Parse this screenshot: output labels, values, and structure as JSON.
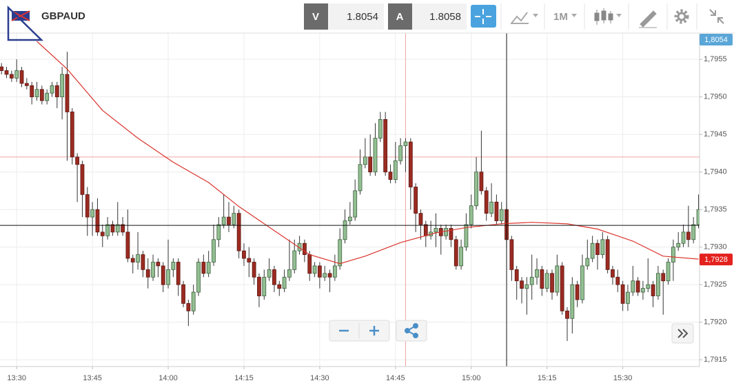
{
  "header": {
    "symbol": "GBPAUD",
    "bid_label": "V",
    "bid": 1.8054,
    "ask_label": "A",
    "ask": 1.8058,
    "timeframe": "1M"
  },
  "chart_data": {
    "type": "candlestick",
    "up_color": "#93bf93",
    "down_color": "#9b2b22",
    "ma_color": "#d9332b",
    "xlim": [
      -0.3,
      138.2
    ],
    "ylim": [
      1.79141,
      1.79585
    ],
    "xticks": [
      {
        "value": 3,
        "label": "13:30"
      },
      {
        "value": 18,
        "label": "13:45"
      },
      {
        "value": 33,
        "label": "14:00"
      },
      {
        "value": 48,
        "label": "14:15"
      },
      {
        "value": 63,
        "label": "14:30"
      },
      {
        "value": 78,
        "label": "14:45"
      },
      {
        "value": 93,
        "label": "15:00"
      },
      {
        "value": 108,
        "label": "15:15"
      },
      {
        "value": 123,
        "label": "15:30"
      }
    ],
    "yticks": [
      {
        "value": 1.7915,
        "label": "1,7915"
      },
      {
        "value": 1.792,
        "label": "1,7920"
      },
      {
        "value": 1.7925,
        "label": "1,7925"
      },
      {
        "value": 1.793,
        "label": "1,7930"
      },
      {
        "value": 1.7935,
        "label": "1,7935"
      },
      {
        "value": 1.794,
        "label": "1,7940"
      },
      {
        "value": 1.7945,
        "label": "1,7945"
      },
      {
        "value": 1.795,
        "label": "1,7950"
      },
      {
        "value": 1.7955,
        "label": "1,7955"
      }
    ],
    "grid": true,
    "ohlc": [
      [
        1.7954,
        1.79545,
        1.7953,
        1.79535
      ],
      [
        1.79535,
        1.7954,
        1.79525,
        1.7953
      ],
      [
        1.7953,
        1.79535,
        1.7952,
        1.79525
      ],
      [
        1.79525,
        1.7955,
        1.7952,
        1.79535
      ],
      [
        1.79535,
        1.7954,
        1.79513,
        1.79518
      ],
      [
        1.79518,
        1.79525,
        1.7951,
        1.79515
      ],
      [
        1.79515,
        1.7952,
        1.7949,
        1.795
      ],
      [
        1.795,
        1.7952,
        1.79495,
        1.7951
      ],
      [
        1.7951,
        1.79515,
        1.7949,
        1.79495
      ],
      [
        1.79495,
        1.7951,
        1.7949,
        1.79505
      ],
      [
        1.79505,
        1.7952,
        1.795,
        1.79515
      ],
      [
        1.79515,
        1.7952,
        1.79485,
        1.795
      ],
      [
        1.795,
        1.7954,
        1.7947,
        1.7953
      ],
      [
        1.7953,
        1.7956,
        1.79415,
        1.7948
      ],
      [
        1.7948,
        1.79485,
        1.7941,
        1.7942
      ],
      [
        1.7942,
        1.79425,
        1.7936,
        1.7941
      ],
      [
        1.7941,
        1.79415,
        1.7934,
        1.7937
      ],
      [
        1.7937,
        1.7938,
        1.79315,
        1.7934
      ],
      [
        1.7934,
        1.7936,
        1.79315,
        1.7935
      ],
      [
        1.7935,
        1.79365,
        1.79315,
        1.7932
      ],
      [
        1.7932,
        1.7933,
        1.793,
        1.79315
      ],
      [
        1.79315,
        1.7934,
        1.7931,
        1.7933
      ],
      [
        1.7933,
        1.79335,
        1.79315,
        1.7932
      ],
      [
        1.7932,
        1.7936,
        1.79315,
        1.7933
      ],
      [
        1.7933,
        1.7934,
        1.79315,
        1.7932
      ],
      [
        1.7932,
        1.7935,
        1.7928,
        1.79285
      ],
      [
        1.79285,
        1.7929,
        1.79265,
        1.7928
      ],
      [
        1.7928,
        1.7932,
        1.7927,
        1.7929
      ],
      [
        1.7929,
        1.79295,
        1.7926,
        1.7927
      ],
      [
        1.7927,
        1.79285,
        1.79245,
        1.7926
      ],
      [
        1.7926,
        1.7929,
        1.79255,
        1.7928
      ],
      [
        1.7928,
        1.79285,
        1.7926,
        1.79275
      ],
      [
        1.79275,
        1.7928,
        1.7924,
        1.7925
      ],
      [
        1.7925,
        1.7931,
        1.79245,
        1.7927
      ],
      [
        1.7927,
        1.79285,
        1.7926,
        1.7928
      ],
      [
        1.7928,
        1.79285,
        1.79235,
        1.7925
      ],
      [
        1.7925,
        1.79255,
        1.7922,
        1.79225
      ],
      [
        1.79225,
        1.7923,
        1.79195,
        1.79215
      ],
      [
        1.79215,
        1.7925,
        1.7921,
        1.7924
      ],
      [
        1.7924,
        1.79285,
        1.79235,
        1.7928
      ],
      [
        1.7928,
        1.7929,
        1.7926,
        1.79265
      ],
      [
        1.79265,
        1.79295,
        1.7926,
        1.7928
      ],
      [
        1.7928,
        1.7933,
        1.79275,
        1.7931
      ],
      [
        1.7931,
        1.7934,
        1.793,
        1.7933
      ],
      [
        1.7933,
        1.7937,
        1.79325,
        1.7934
      ],
      [
        1.7934,
        1.7936,
        1.7932,
        1.7933
      ],
      [
        1.7933,
        1.79355,
        1.79325,
        1.79345
      ],
      [
        1.79345,
        1.7935,
        1.79285,
        1.79295
      ],
      [
        1.79295,
        1.79305,
        1.79275,
        1.79285
      ],
      [
        1.79285,
        1.793,
        1.7926,
        1.7928
      ],
      [
        1.7928,
        1.79285,
        1.7925,
        1.7926
      ],
      [
        1.7926,
        1.79265,
        1.7922,
        1.79235
      ],
      [
        1.79235,
        1.7927,
        1.7923,
        1.7926
      ],
      [
        1.7926,
        1.79285,
        1.79255,
        1.7927
      ],
      [
        1.7927,
        1.79275,
        1.7924,
        1.7925
      ],
      [
        1.7925,
        1.79255,
        1.79235,
        1.79245
      ],
      [
        1.79245,
        1.7927,
        1.7924,
        1.7926
      ],
      [
        1.7926,
        1.7931,
        1.79255,
        1.7927
      ],
      [
        1.7927,
        1.7931,
        1.79265,
        1.79295
      ],
      [
        1.79295,
        1.79315,
        1.7929,
        1.79305
      ],
      [
        1.79305,
        1.7931,
        1.7928,
        1.7929
      ],
      [
        1.7929,
        1.79295,
        1.79255,
        1.79265
      ],
      [
        1.79265,
        1.7928,
        1.7926,
        1.79275
      ],
      [
        1.79275,
        1.7928,
        1.79245,
        1.7926
      ],
      [
        1.7926,
        1.79275,
        1.79255,
        1.79265
      ],
      [
        1.79265,
        1.7927,
        1.7924,
        1.7926
      ],
      [
        1.7926,
        1.7929,
        1.79255,
        1.79275
      ],
      [
        1.79275,
        1.79325,
        1.7927,
        1.7931
      ],
      [
        1.7931,
        1.7935,
        1.79305,
        1.79335
      ],
      [
        1.79335,
        1.7936,
        1.7933,
        1.7934
      ],
      [
        1.7934,
        1.7939,
        1.79335,
        1.79375
      ],
      [
        1.79375,
        1.7943,
        1.7937,
        1.7941
      ],
      [
        1.7941,
        1.79445,
        1.79405,
        1.7942
      ],
      [
        1.7942,
        1.7945,
        1.79395,
        1.794
      ],
      [
        1.794,
        1.79465,
        1.79395,
        1.79445
      ],
      [
        1.79445,
        1.7948,
        1.7944,
        1.7947
      ],
      [
        1.7947,
        1.7948,
        1.79395,
        1.794
      ],
      [
        1.794,
        1.7941,
        1.79385,
        1.7939
      ],
      [
        1.7939,
        1.7944,
        1.79385,
        1.79415
      ],
      [
        1.79415,
        1.79445,
        1.7941,
        1.79435
      ],
      [
        1.79435,
        1.79445,
        1.794,
        1.7944
      ],
      [
        1.7944,
        1.79445,
        1.7935,
        1.7938
      ],
      [
        1.7938,
        1.79385,
        1.7932,
        1.79345
      ],
      [
        1.79345,
        1.7935,
        1.7931,
        1.7933
      ],
      [
        1.7933,
        1.79335,
        1.793,
        1.79315
      ],
      [
        1.79315,
        1.79335,
        1.7931,
        1.7932
      ],
      [
        1.7932,
        1.79345,
        1.793,
        1.79325
      ],
      [
        1.79325,
        1.7933,
        1.7929,
        1.79315
      ],
      [
        1.79315,
        1.7933,
        1.7931,
        1.79325
      ],
      [
        1.79325,
        1.7933,
        1.793,
        1.7931
      ],
      [
        1.7931,
        1.79315,
        1.7927,
        1.79275
      ],
      [
        1.79275,
        1.7931,
        1.7927,
        1.793
      ],
      [
        1.793,
        1.79345,
        1.79295,
        1.7933
      ],
      [
        1.7933,
        1.7937,
        1.79325,
        1.79355
      ],
      [
        1.79355,
        1.7942,
        1.7935,
        1.794
      ],
      [
        1.794,
        1.79455,
        1.7937,
        1.79375
      ],
      [
        1.79375,
        1.7938,
        1.79335,
        1.79345
      ],
      [
        1.79345,
        1.79385,
        1.7934,
        1.7936
      ],
      [
        1.7936,
        1.7937,
        1.7933,
        1.79335
      ],
      [
        1.79335,
        1.7936,
        1.7933,
        1.7935
      ],
      [
        1.7935,
        1.7936,
        1.793,
        1.7931
      ],
      [
        1.7931,
        1.79315,
        1.79255,
        1.7927
      ],
      [
        1.7927,
        1.79275,
        1.7923,
        1.79255
      ],
      [
        1.79255,
        1.7926,
        1.79225,
        1.79245
      ],
      [
        1.79245,
        1.7926,
        1.7921,
        1.7925
      ],
      [
        1.7925,
        1.7929,
        1.7923,
        1.7926
      ],
      [
        1.7926,
        1.79285,
        1.7925,
        1.7927
      ],
      [
        1.7927,
        1.79275,
        1.79235,
        1.79245
      ],
      [
        1.79245,
        1.7927,
        1.7924,
        1.79265
      ],
      [
        1.79265,
        1.7927,
        1.7923,
        1.7924
      ],
      [
        1.7924,
        1.7929,
        1.79235,
        1.79275
      ],
      [
        1.79275,
        1.7928,
        1.7921,
        1.79215
      ],
      [
        1.79215,
        1.7922,
        1.79175,
        1.79205
      ],
      [
        1.79205,
        1.7926,
        1.79185,
        1.7925
      ],
      [
        1.7925,
        1.79255,
        1.7922,
        1.7923
      ],
      [
        1.7923,
        1.7929,
        1.79225,
        1.79275
      ],
      [
        1.79275,
        1.7931,
        1.7927,
        1.79285
      ],
      [
        1.79285,
        1.79315,
        1.7928,
        1.79305
      ],
      [
        1.79305,
        1.7931,
        1.7927,
        1.7929
      ],
      [
        1.7929,
        1.7932,
        1.79285,
        1.7931
      ],
      [
        1.7931,
        1.79315,
        1.79265,
        1.7927
      ],
      [
        1.7927,
        1.79275,
        1.7925,
        1.7926
      ],
      [
        1.7926,
        1.7927,
        1.7924,
        1.7925
      ],
      [
        1.7925,
        1.79255,
        1.79215,
        1.79225
      ],
      [
        1.79225,
        1.7925,
        1.79215,
        1.7924
      ],
      [
        1.7924,
        1.79275,
        1.79235,
        1.79255
      ],
      [
        1.79255,
        1.7926,
        1.79235,
        1.7924
      ],
      [
        1.7924,
        1.79255,
        1.7923,
        1.79245
      ],
      [
        1.79245,
        1.79285,
        1.7924,
        1.7925
      ],
      [
        1.7925,
        1.79255,
        1.7922,
        1.79235
      ],
      [
        1.79235,
        1.79275,
        1.7923,
        1.79265
      ],
      [
        1.79265,
        1.7927,
        1.7921,
        1.79255
      ],
      [
        1.79255,
        1.79285,
        1.7925,
        1.7928
      ],
      [
        1.7928,
        1.7931,
        1.79255,
        1.793
      ],
      [
        1.793,
        1.7932,
        1.79295,
        1.79305
      ],
      [
        1.79305,
        1.7933,
        1.793,
        1.7932
      ],
      [
        1.7932,
        1.79355,
        1.793,
        1.7931
      ],
      [
        1.7931,
        1.7934,
        1.79305,
        1.7933
      ],
      [
        1.7933,
        1.7937,
        1.79325,
        1.7935
      ]
    ],
    "ma": {
      "x": [
        7,
        13,
        20,
        27,
        34,
        41,
        47,
        54,
        61,
        67,
        72,
        79,
        86,
        92,
        99,
        105,
        112,
        118,
        125,
        131,
        138
      ],
      "values": [
        1.79574,
        1.79537,
        1.79482,
        1.79445,
        1.79413,
        1.79386,
        1.79354,
        1.79322,
        1.7929,
        1.79278,
        1.79288,
        1.79306,
        1.79319,
        1.79326,
        1.79331,
        1.79333,
        1.79331,
        1.79324,
        1.79308,
        1.79288,
        1.79284
      ]
    },
    "crosshair": {
      "x": 100,
      "y": 1.79329
    },
    "guide": {
      "x": 80,
      "y": 1.7942
    },
    "price_labels": [
      {
        "value": 1.8054,
        "label": "1,8054",
        "color": "#5aa6d8"
      },
      {
        "value": 1.79284,
        "label": "1,7928",
        "color": "#e3211d"
      }
    ]
  }
}
